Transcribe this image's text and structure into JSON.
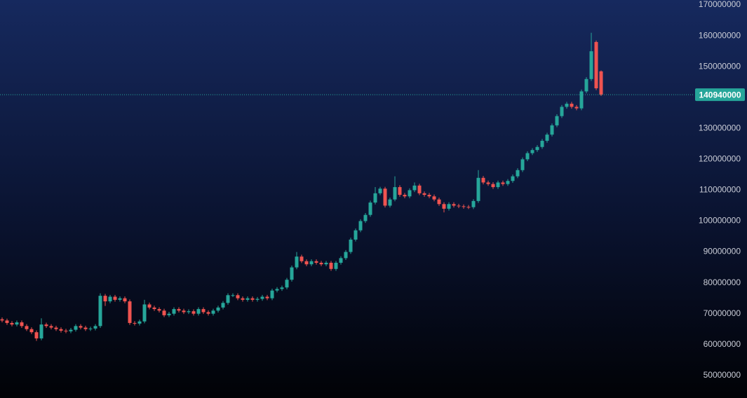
{
  "chart_data": {
    "type": "candlestick",
    "up_color": "#26a69a",
    "down_color": "#ef5350",
    "price_line_color": "#26a69a",
    "ylim": [
      42700000,
      171600000
    ],
    "yticks": [
      50000000,
      60000000,
      70000000,
      80000000,
      90000000,
      100000000,
      110000000,
      120000000,
      130000000,
      140000000,
      150000000,
      160000000,
      170000000
    ],
    "open": [
      68200000,
      67800000,
      67000000,
      66500000,
      67200000,
      66000000,
      65000000,
      64000000,
      62000000,
      66500000,
      66000000,
      65500000,
      65000000,
      64500000,
      64300000,
      64800000,
      66000000,
      65500000,
      65000000,
      65200000,
      66000000,
      75800000,
      74000000,
      75500000,
      74500000,
      75000000,
      74000000,
      67000000,
      66800000,
      67500000,
      73000000,
      72000000,
      71500000,
      71000000,
      69500000,
      70000000,
      71500000,
      71000000,
      70500000,
      70800000,
      70000000,
      71500000,
      70500000,
      70000000,
      71000000,
      72000000,
      73500000,
      76000000,
      76000000,
      75000000,
      74500000,
      75000000,
      74500000,
      74800000,
      75500000,
      75000000,
      77500000,
      78000000,
      78500000,
      81000000,
      85000000,
      88500000,
      87000000,
      86000000,
      87000000,
      86500000,
      86000000,
      86500000,
      84500000,
      86500000,
      88000000,
      90000000,
      94000000,
      97000000,
      100000000,
      102000000,
      106000000,
      109000000,
      110500000,
      105000000,
      107000000,
      111000000,
      108500000,
      108000000,
      110000000,
      111500000,
      109000000,
      108500000,
      108000000,
      107000000,
      105500000,
      104000000,
      105500000,
      105000000,
      104800000,
      104600000,
      104500000,
      106500000,
      114000000,
      112500000,
      112000000,
      111000000,
      112500000,
      112000000,
      113000000,
      114500000,
      116500000,
      120000000,
      122000000,
      123000000,
      124000000,
      126000000,
      128000000,
      131000000,
      134000000,
      137000000,
      138000000,
      137000000,
      136500000,
      142000000,
      146000000,
      158000000,
      148500000
    ],
    "high": [
      68800000,
      68400000,
      67600000,
      67800000,
      67800000,
      66600000,
      65600000,
      64600000,
      68500000,
      67100000,
      66600000,
      66100000,
      65600000,
      65100000,
      65400000,
      66600000,
      66600000,
      66100000,
      65800000,
      66600000,
      76600000,
      76400000,
      76100000,
      76100000,
      75600000,
      75600000,
      74600000,
      67600000,
      68100000,
      74500000,
      73600000,
      72600000,
      72100000,
      71600000,
      70600000,
      72100000,
      72100000,
      71600000,
      71400000,
      71400000,
      72100000,
      72100000,
      71100000,
      71600000,
      72600000,
      74100000,
      76600000,
      76600000,
      76600000,
      75600000,
      75600000,
      75600000,
      75400000,
      76100000,
      76100000,
      78100000,
      78600000,
      79100000,
      81600000,
      85600000,
      90000000,
      89100000,
      87600000,
      87600000,
      87600000,
      87100000,
      87100000,
      87100000,
      87100000,
      88600000,
      90600000,
      94600000,
      97600000,
      100600000,
      102600000,
      106600000,
      111000000,
      111100000,
      111100000,
      107600000,
      114500000,
      111600000,
      109100000,
      110600000,
      112500000,
      112100000,
      109600000,
      109100000,
      108600000,
      107600000,
      106100000,
      106100000,
      106100000,
      105600000,
      105400000,
      105200000,
      107100000,
      116500000,
      114600000,
      113100000,
      112600000,
      113100000,
      113100000,
      113600000,
      115100000,
      117100000,
      120600000,
      122600000,
      123600000,
      124600000,
      126600000,
      128600000,
      131600000,
      134600000,
      137600000,
      138600000,
      138600000,
      137600000,
      142600000,
      146600000,
      161000000,
      158500000,
      148800000
    ],
    "low": [
      67200000,
      66400000,
      65900000,
      65900000,
      65400000,
      64400000,
      63400000,
      61200000,
      61400000,
      65400000,
      64900000,
      64400000,
      63900000,
      63700000,
      63700000,
      64200000,
      64900000,
      64400000,
      64400000,
      64600000,
      65400000,
      72500000,
      73400000,
      73900000,
      73900000,
      73400000,
      66400000,
      66200000,
      66200000,
      66900000,
      71400000,
      70900000,
      70400000,
      68900000,
      68900000,
      69400000,
      70400000,
      69900000,
      69900000,
      69400000,
      69400000,
      69900000,
      69400000,
      69400000,
      70400000,
      71400000,
      72900000,
      75400000,
      74400000,
      73900000,
      73900000,
      73900000,
      73900000,
      74200000,
      74400000,
      74400000,
      76900000,
      77400000,
      77900000,
      80400000,
      84400000,
      86400000,
      85400000,
      85400000,
      85900000,
      85400000,
      85400000,
      83900000,
      83900000,
      85900000,
      87400000,
      89400000,
      93400000,
      96400000,
      99400000,
      101400000,
      105400000,
      108400000,
      104400000,
      104400000,
      106400000,
      107900000,
      107400000,
      107400000,
      109400000,
      108400000,
      107900000,
      107400000,
      106400000,
      104900000,
      102800000,
      103400000,
      104400000,
      104200000,
      104000000,
      103900000,
      103900000,
      105900000,
      111900000,
      111400000,
      110400000,
      110400000,
      111400000,
      111400000,
      112400000,
      113900000,
      115900000,
      119400000,
      121400000,
      122400000,
      123400000,
      125400000,
      127400000,
      130400000,
      133400000,
      136400000,
      136400000,
      135900000,
      135900000,
      141400000,
      145400000,
      142400000,
      140500000
    ],
    "close": [
      67800000,
      67000000,
      66500000,
      67200000,
      66000000,
      65000000,
      64000000,
      62000000,
      66500000,
      66000000,
      65500000,
      65000000,
      64500000,
      64300000,
      64800000,
      66000000,
      65500000,
      65000000,
      65200000,
      66000000,
      75800000,
      74000000,
      75500000,
      74500000,
      75000000,
      74000000,
      67000000,
      66800000,
      67500000,
      73000000,
      72000000,
      71500000,
      71000000,
      69500000,
      70000000,
      71500000,
      71000000,
      70500000,
      70800000,
      70000000,
      71500000,
      70500000,
      70000000,
      71000000,
      72000000,
      73500000,
      76000000,
      76000000,
      75000000,
      74500000,
      75000000,
      74500000,
      74800000,
      75500000,
      75000000,
      77500000,
      78000000,
      78500000,
      81000000,
      85000000,
      88500000,
      87000000,
      86000000,
      87000000,
      86500000,
      86000000,
      86500000,
      84500000,
      86500000,
      88000000,
      90000000,
      94000000,
      97000000,
      100000000,
      102000000,
      106000000,
      109000000,
      110500000,
      105000000,
      107000000,
      111000000,
      108500000,
      108000000,
      110000000,
      111500000,
      109000000,
      108500000,
      108000000,
      107000000,
      105500000,
      104000000,
      105500000,
      105000000,
      104800000,
      104600000,
      104500000,
      106500000,
      114000000,
      112500000,
      112000000,
      111000000,
      112500000,
      112000000,
      113000000,
      114500000,
      116500000,
      120000000,
      122000000,
      123000000,
      124000000,
      126000000,
      128000000,
      131000000,
      134000000,
      137000000,
      138000000,
      137000000,
      136500000,
      142000000,
      146000000,
      155000000,
      143000000,
      140940000
    ]
  }
}
